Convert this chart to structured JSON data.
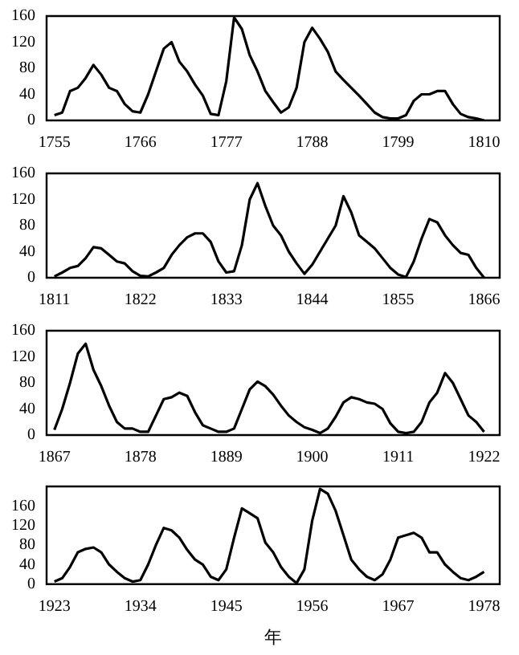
{
  "chart_data": [
    {
      "type": "line",
      "color": "#000000",
      "x": [
        1755,
        1756,
        1757,
        1758,
        1759,
        1760,
        1761,
        1762,
        1763,
        1764,
        1765,
        1766,
        1767,
        1768,
        1769,
        1770,
        1771,
        1772,
        1773,
        1774,
        1775,
        1776,
        1777,
        1778,
        1779,
        1780,
        1781,
        1782,
        1783,
        1784,
        1785,
        1786,
        1787,
        1788,
        1789,
        1790,
        1791,
        1792,
        1793,
        1794,
        1795,
        1796,
        1797,
        1798,
        1799,
        1800,
        1801,
        1802,
        1803,
        1804,
        1805,
        1806,
        1807,
        1808,
        1809,
        1810
      ],
      "values": [
        8,
        12,
        45,
        50,
        65,
        85,
        70,
        50,
        45,
        25,
        14,
        12,
        40,
        75,
        110,
        120,
        90,
        75,
        55,
        38,
        10,
        8,
        60,
        158,
        140,
        100,
        75,
        45,
        28,
        12,
        20,
        50,
        120,
        142,
        125,
        105,
        75,
        62,
        50,
        38,
        25,
        12,
        5,
        3,
        3,
        8,
        30,
        40,
        40,
        45,
        45,
        25,
        10,
        5,
        3,
        0
      ],
      "xlim": [
        1754,
        1812
      ],
      "xticks": [
        1755,
        1766,
        1777,
        1788,
        1799,
        1810
      ],
      "ylim": [
        0,
        160
      ],
      "yticks": [
        0,
        40,
        80,
        120,
        160
      ]
    },
    {
      "type": "line",
      "color": "#000000",
      "x": [
        1811,
        1812,
        1813,
        1814,
        1815,
        1816,
        1817,
        1818,
        1819,
        1820,
        1821,
        1822,
        1823,
        1824,
        1825,
        1826,
        1827,
        1828,
        1829,
        1830,
        1831,
        1832,
        1833,
        1834,
        1835,
        1836,
        1837,
        1838,
        1839,
        1840,
        1841,
        1842,
        1843,
        1844,
        1845,
        1846,
        1847,
        1848,
        1849,
        1850,
        1851,
        1852,
        1853,
        1854,
        1855,
        1856,
        1857,
        1858,
        1859,
        1860,
        1861,
        1862,
        1863,
        1864,
        1865,
        1866
      ],
      "values": [
        2,
        8,
        15,
        18,
        30,
        47,
        45,
        35,
        25,
        22,
        10,
        3,
        2,
        8,
        15,
        35,
        50,
        62,
        68,
        68,
        55,
        25,
        8,
        10,
        50,
        120,
        145,
        110,
        80,
        65,
        40,
        22,
        6,
        20,
        40,
        60,
        80,
        125,
        100,
        65,
        55,
        45,
        30,
        15,
        5,
        1,
        25,
        60,
        90,
        85,
        65,
        50,
        38,
        35,
        15,
        0
      ],
      "xlim": [
        1810,
        1868
      ],
      "xticks": [
        1811,
        1822,
        1833,
        1844,
        1855,
        1866
      ],
      "ylim": [
        0,
        160
      ],
      "yticks": [
        0,
        40,
        80,
        120,
        160
      ]
    },
    {
      "type": "line",
      "color": "#000000",
      "x": [
        1867,
        1868,
        1869,
        1870,
        1871,
        1872,
        1873,
        1874,
        1875,
        1876,
        1877,
        1878,
        1879,
        1880,
        1881,
        1882,
        1883,
        1884,
        1885,
        1886,
        1887,
        1888,
        1889,
        1890,
        1891,
        1892,
        1893,
        1894,
        1895,
        1896,
        1897,
        1898,
        1899,
        1900,
        1901,
        1902,
        1903,
        1904,
        1905,
        1906,
        1907,
        1908,
        1909,
        1910,
        1911,
        1912,
        1913,
        1914,
        1915,
        1916,
        1917,
        1918,
        1919,
        1920,
        1921,
        1922
      ],
      "values": [
        8,
        40,
        80,
        125,
        140,
        100,
        75,
        45,
        20,
        10,
        10,
        5,
        5,
        30,
        55,
        58,
        65,
        60,
        35,
        15,
        10,
        5,
        5,
        10,
        40,
        70,
        82,
        75,
        62,
        45,
        30,
        20,
        12,
        8,
        3,
        10,
        28,
        50,
        58,
        55,
        50,
        48,
        40,
        18,
        5,
        3,
        5,
        20,
        50,
        65,
        95,
        80,
        55,
        30,
        20,
        5
      ],
      "xlim": [
        1866,
        1924
      ],
      "xticks": [
        1867,
        1878,
        1889,
        1900,
        1911,
        1922
      ],
      "ylim": [
        0,
        160
      ],
      "yticks": [
        0,
        40,
        80,
        120,
        160
      ]
    },
    {
      "type": "line",
      "color": "#000000",
      "xlabel": "年",
      "x": [
        1923,
        1924,
        1925,
        1926,
        1927,
        1928,
        1929,
        1930,
        1931,
        1932,
        1933,
        1934,
        1935,
        1936,
        1937,
        1938,
        1939,
        1940,
        1941,
        1942,
        1943,
        1944,
        1945,
        1946,
        1947,
        1948,
        1949,
        1950,
        1951,
        1952,
        1953,
        1954,
        1955,
        1956,
        1957,
        1958,
        1959,
        1960,
        1961,
        1962,
        1963,
        1964,
        1965,
        1966,
        1967,
        1968,
        1969,
        1970,
        1971,
        1972,
        1973,
        1974,
        1975,
        1976,
        1977,
        1978
      ],
      "values": [
        5,
        12,
        35,
        65,
        72,
        75,
        65,
        40,
        25,
        12,
        5,
        8,
        40,
        80,
        115,
        110,
        95,
        70,
        50,
        40,
        15,
        8,
        30,
        95,
        155,
        145,
        135,
        85,
        65,
        35,
        15,
        2,
        30,
        130,
        195,
        185,
        150,
        100,
        50,
        30,
        15,
        8,
        20,
        50,
        95,
        100,
        105,
        95,
        65,
        65,
        40,
        25,
        12,
        8,
        15,
        25
      ],
      "xlim": [
        1922,
        1980
      ],
      "xticks": [
        1923,
        1934,
        1945,
        1956,
        1967,
        1978
      ],
      "ylim": [
        0,
        200
      ],
      "yticks": [
        0,
        40,
        80,
        120,
        160
      ]
    }
  ]
}
